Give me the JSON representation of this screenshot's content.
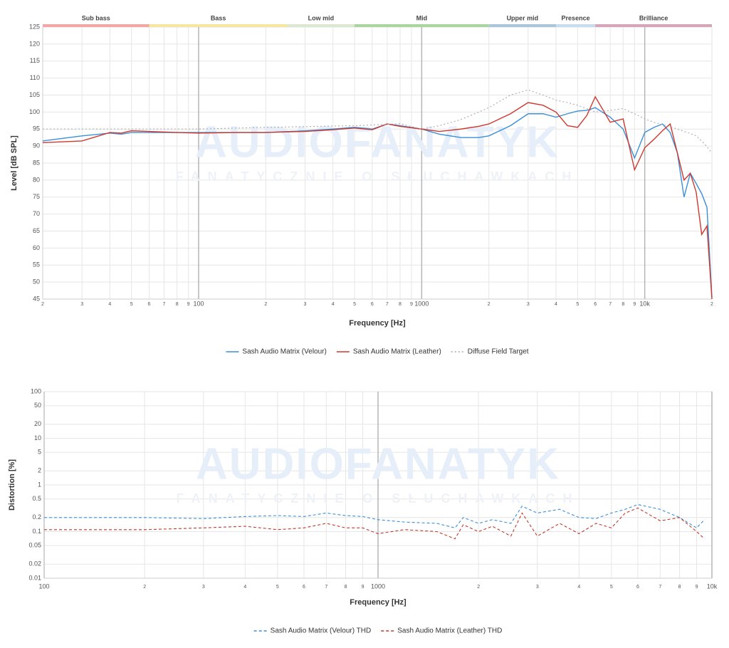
{
  "chart_data": [
    {
      "type": "line",
      "log_x": true,
      "grid": true,
      "x_label": "Frequency [Hz]",
      "y_label": "Level [dB SPL]",
      "watermark": [
        "AUDIOFANATYK",
        "FANATYCZNIE O SŁUCHAWKACH"
      ],
      "bands": [
        {
          "label": "Sub bass",
          "from": 20,
          "to": 60,
          "color": "#f2a7a7"
        },
        {
          "label": "Bass",
          "from": 60,
          "to": 250,
          "color": "#f5e6a0"
        },
        {
          "label": "Low mid",
          "from": 250,
          "to": 500,
          "color": "#d9e8cf"
        },
        {
          "label": "Mid",
          "from": 500,
          "to": 2000,
          "color": "#abd59f"
        },
        {
          "label": "Upper mid",
          "from": 2000,
          "to": 4000,
          "color": "#a9c5d8"
        },
        {
          "label": "Presence",
          "from": 4000,
          "to": 6000,
          "color": "#c7ddee"
        },
        {
          "label": "Brilliance",
          "from": 6000,
          "to": 20000,
          "color": "#d5a5ba"
        }
      ],
      "xlim": [
        20,
        20000
      ],
      "ylim": [
        45,
        125
      ],
      "xticks": [
        {
          "value": 20,
          "label": "2"
        },
        {
          "value": 30,
          "label": "3"
        },
        {
          "value": 40,
          "label": "4"
        },
        {
          "value": 50,
          "label": "5"
        },
        {
          "value": 60,
          "label": "6"
        },
        {
          "value": 70,
          "label": "7"
        },
        {
          "value": 80,
          "label": "8"
        },
        {
          "value": 90,
          "label": "9"
        },
        100,
        {
          "value": 200,
          "label": "2"
        },
        {
          "value": 300,
          "label": "3"
        },
        {
          "value": 400,
          "label": "4"
        },
        {
          "value": 500,
          "label": "5"
        },
        {
          "value": 600,
          "label": "6"
        },
        {
          "value": 700,
          "label": "7"
        },
        {
          "value": 800,
          "label": "8"
        },
        {
          "value": 900,
          "label": "9"
        },
        1000,
        {
          "value": 2000,
          "label": "2"
        },
        {
          "value": 3000,
          "label": "3"
        },
        {
          "value": 4000,
          "label": "4"
        },
        {
          "value": 5000,
          "label": "5"
        },
        {
          "value": 6000,
          "label": "6"
        },
        {
          "value": 7000,
          "label": "7"
        },
        {
          "value": 8000,
          "label": "8"
        },
        {
          "value": 9000,
          "label": "9"
        },
        {
          "value": 10000,
          "label": "10k"
        },
        {
          "value": 20000,
          "label": "2"
        }
      ],
      "yticks": [
        45,
        50,
        55,
        60,
        65,
        70,
        75,
        80,
        85,
        90,
        95,
        100,
        105,
        110,
        115,
        120,
        125
      ],
      "x": [
        20,
        30,
        40,
        45,
        50,
        60,
        80,
        100,
        150,
        200,
        300,
        400,
        500,
        600,
        700,
        800,
        1000,
        1200,
        1500,
        1800,
        2000,
        2500,
        3000,
        3500,
        4000,
        4500,
        5000,
        5500,
        6000,
        7000,
        8000,
        9000,
        10000,
        11000,
        12000,
        13000,
        14000,
        15000,
        16000,
        17000,
        18000,
        19000,
        20000
      ],
      "series": [
        {
          "name": "Sash Audio Matrix (Velour)",
          "color": "#3b8fd9",
          "style": "solid",
          "values": [
            91.5,
            93,
            93.8,
            93.5,
            94,
            94,
            94,
            94,
            94,
            94,
            94.5,
            95,
            95.5,
            95,
            96.5,
            96,
            95,
            93.5,
            92.5,
            92.5,
            93,
            96,
            99.5,
            99.5,
            98.5,
            99.5,
            100.3,
            100.5,
            101.3,
            98.5,
            95,
            86.5,
            94,
            95.5,
            96.5,
            94,
            88,
            75,
            82,
            79,
            76,
            72,
            45.5
          ]
        },
        {
          "name": "Sash Audio Matrix (Leather)",
          "color": "#d0382e",
          "style": "solid",
          "values": [
            91,
            91.5,
            94,
            93.8,
            94.5,
            94.3,
            94,
            93.8,
            94,
            94,
            94.3,
            94.8,
            95.3,
            94.8,
            96.5,
            95.8,
            95,
            94.3,
            95,
            95.8,
            96.5,
            99.5,
            102.8,
            102,
            100,
            96,
            95.5,
            99,
            104.5,
            97,
            98,
            83,
            89.5,
            92,
            94.5,
            96.5,
            88,
            80,
            82,
            76.5,
            64,
            66.5,
            45
          ]
        },
        {
          "name": "Diffuse Field Target",
          "color": "#aaaaaa",
          "style": "dotted",
          "values": [
            95,
            95,
            95,
            95,
            95,
            95,
            95,
            95,
            95.3,
            95.5,
            95.7,
            95.9,
            96,
            96.2,
            96.4,
            96.6,
            95,
            96,
            97.8,
            100,
            101.3,
            105,
            106.5,
            105,
            103.5,
            102.8,
            102,
            101,
            100,
            100.5,
            101,
            99.5,
            98,
            97,
            96.3,
            95.7,
            95,
            94.3,
            93.7,
            93,
            91.5,
            89.8,
            88
          ]
        }
      ]
    },
    {
      "type": "line",
      "log_x": true,
      "log_y": true,
      "grid": true,
      "x_label": "Frequency [Hz]",
      "y_label": "Distortion [%]",
      "watermark": [
        "AUDIOFANATYK",
        "FANATYCZNIE O SŁUCHAWKACH"
      ],
      "xlim": [
        100,
        10000
      ],
      "ylim": [
        0.01,
        100
      ],
      "xticks": [
        100,
        {
          "value": 200,
          "label": "2"
        },
        {
          "value": 300,
          "label": "3"
        },
        {
          "value": 400,
          "label": "4"
        },
        {
          "value": 500,
          "label": "5"
        },
        {
          "value": 600,
          "label": "6"
        },
        {
          "value": 700,
          "label": "7"
        },
        {
          "value": 800,
          "label": "8"
        },
        {
          "value": 900,
          "label": "9"
        },
        1000,
        {
          "value": 2000,
          "label": "2"
        },
        {
          "value": 3000,
          "label": "3"
        },
        {
          "value": 4000,
          "label": "4"
        },
        {
          "value": 5000,
          "label": "5"
        },
        {
          "value": 6000,
          "label": "6"
        },
        {
          "value": 7000,
          "label": "7"
        },
        {
          "value": 8000,
          "label": "8"
        },
        {
          "value": 9000,
          "label": "9"
        },
        {
          "value": 10000,
          "label": "10k"
        }
      ],
      "yticks": [
        0.01,
        0.02,
        0.05,
        0.1,
        0.2,
        0.5,
        1,
        2,
        5,
        10,
        20,
        50,
        100
      ],
      "x": [
        100,
        150,
        200,
        300,
        400,
        500,
        600,
        700,
        800,
        900,
        1000,
        1200,
        1500,
        1700,
        1800,
        2000,
        2200,
        2500,
        2700,
        3000,
        3500,
        4000,
        4500,
        5000,
        5500,
        6000,
        7000,
        8000,
        9000,
        9500
      ],
      "series": [
        {
          "name": "Sash Audio Matrix (Velour) THD",
          "color": "#3b8fd9",
          "style": "dashed",
          "values": [
            0.2,
            0.2,
            0.2,
            0.19,
            0.21,
            0.22,
            0.21,
            0.25,
            0.22,
            0.21,
            0.18,
            0.16,
            0.15,
            0.12,
            0.2,
            0.15,
            0.18,
            0.15,
            0.35,
            0.25,
            0.3,
            0.2,
            0.19,
            0.25,
            0.3,
            0.38,
            0.3,
            0.2,
            0.12,
            0.18
          ]
        },
        {
          "name": "Sash Audio Matrix (Leather) THD",
          "color": "#c0392b",
          "style": "dashed",
          "values": [
            0.11,
            0.11,
            0.11,
            0.12,
            0.13,
            0.11,
            0.12,
            0.15,
            0.12,
            0.12,
            0.09,
            0.11,
            0.1,
            0.07,
            0.14,
            0.1,
            0.13,
            0.08,
            0.25,
            0.08,
            0.15,
            0.09,
            0.15,
            0.12,
            0.25,
            0.32,
            0.17,
            0.2,
            0.1,
            0.07
          ]
        }
      ]
    }
  ]
}
